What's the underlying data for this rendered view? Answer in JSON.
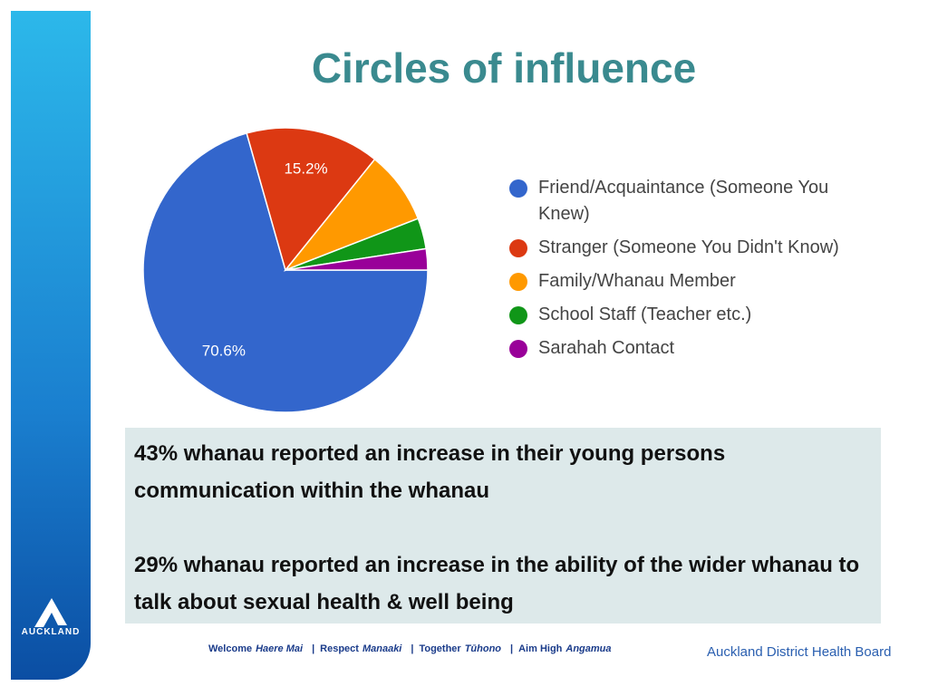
{
  "title": "Circles of influence",
  "chart_data": {
    "type": "pie",
    "categories": [
      "Friend/Acquaintance (Someone You Knew)",
      "Stranger (Someone You Didn't Know)",
      "Family/Whanau Member",
      "School Staff (Teacher etc.)",
      "Sarahah Contact"
    ],
    "values": [
      70.6,
      15.2,
      8.3,
      3.5,
      2.4
    ],
    "value_labels": [
      "70.6%",
      "15.2%",
      null,
      null,
      null
    ],
    "colors": [
      "#3366cc",
      "#dc3912",
      "#ff9900",
      "#109618",
      "#990099"
    ],
    "legend": "right"
  },
  "summary": {
    "paragraphs": [
      "43% whanau reported an increase in their young persons communication within the whanau",
      "29% whanau reported an increase in the ability of the wider whanau to talk about sexual health & well being"
    ]
  },
  "logo": {
    "text": "AUCKLAND"
  },
  "footer": {
    "separator": "|",
    "motto": [
      {
        "en": "Welcome",
        "mi": "Haere Mai"
      },
      {
        "en": "Respect",
        "mi": "Manaaki"
      },
      {
        "en": "Together",
        "mi": "Tūhono"
      },
      {
        "en": "Aim High",
        "mi": "Angamua"
      }
    ],
    "organisation": "Auckland District Health Board"
  }
}
